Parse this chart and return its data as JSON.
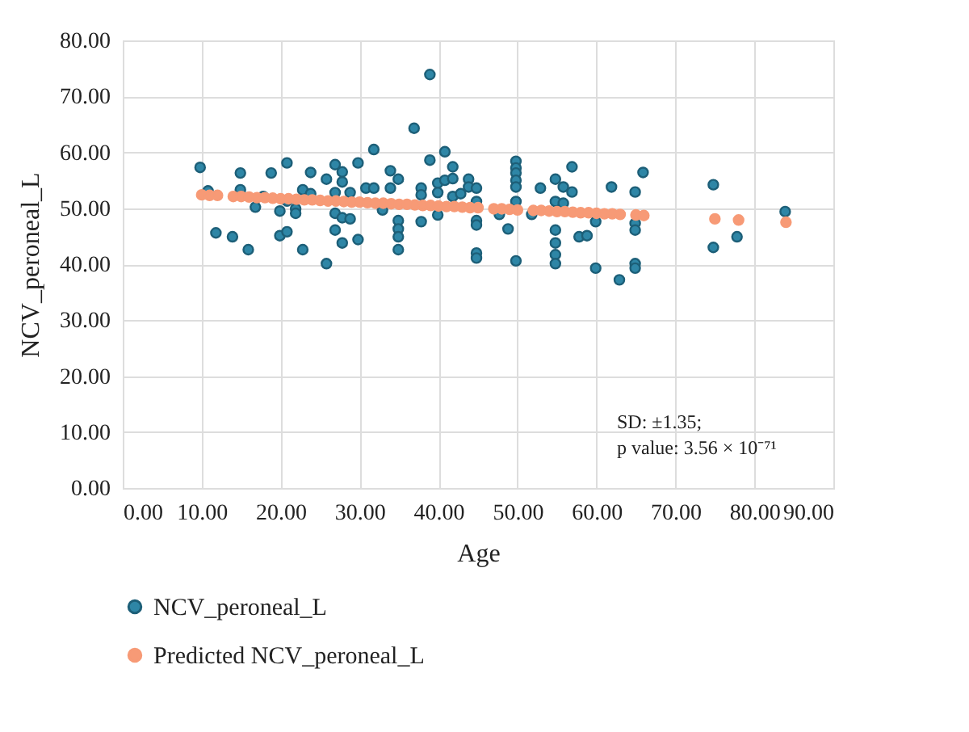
{
  "chart_data": {
    "type": "scatter",
    "xlabel": "Age",
    "ylabel": "NCV_peroneal_L",
    "xlim": [
      0,
      90
    ],
    "ylim": [
      0,
      80
    ],
    "xticks": [
      {
        "value": 0,
        "label": "0.00"
      },
      {
        "value": 10,
        "label": "10.00"
      },
      {
        "value": 20,
        "label": "20.00"
      },
      {
        "value": 30,
        "label": "30.00"
      },
      {
        "value": 40,
        "label": "40.00"
      },
      {
        "value": 50,
        "label": "50.00"
      },
      {
        "value": 60,
        "label": "60.00"
      },
      {
        "value": 70,
        "label": "70.00"
      },
      {
        "value": 80,
        "label": "80.00"
      },
      {
        "value": 90,
        "label": "90.00"
      }
    ],
    "yticks": [
      {
        "value": 0,
        "label": "0.00"
      },
      {
        "value": 10,
        "label": "10.00"
      },
      {
        "value": 20,
        "label": "20.00"
      },
      {
        "value": 30,
        "label": "30.00"
      },
      {
        "value": 40,
        "label": "40.00"
      },
      {
        "value": 50,
        "label": "50.00"
      },
      {
        "value": 60,
        "label": "60.00"
      },
      {
        "value": 70,
        "label": "70.00"
      },
      {
        "value": 80,
        "label": "80.00"
      }
    ],
    "grid": true,
    "legend": "bottom",
    "marker": "circle",
    "annotations": [
      "SD: ±1.35;",
      "p value: 3.56 × 10⁻⁷¹"
    ],
    "series": [
      {
        "name": "NCV_peroneal_L",
        "color": "#2e86a6",
        "x": [
          9.8,
          10.8,
          11.8,
          13.9,
          14.9,
          14.9,
          15.9,
          16.8,
          17.8,
          18.8,
          19.9,
          19.9,
          20.8,
          20.8,
          20.8,
          21.9,
          21.9,
          22.8,
          22.8,
          23.8,
          23.8,
          25.8,
          25.8,
          26.9,
          26.9,
          26.9,
          26.9,
          27.8,
          27.8,
          27.8,
          28.8,
          28.8,
          27.8,
          29.8,
          29.8,
          30.8,
          31.8,
          31.8,
          32.9,
          33.9,
          33.9,
          34.9,
          34.9,
          34.9,
          34.9,
          34.9,
          36.9,
          37.8,
          37.8,
          37.8,
          38.9,
          38.9,
          39.9,
          39.9,
          39.9,
          40.8,
          40.8,
          41.8,
          41.8,
          41.8,
          42.8,
          43.8,
          43.8,
          44.8,
          44.8,
          44.8,
          44.8,
          44.8,
          44.8,
          47.7,
          48.8,
          49.8,
          49.8,
          49.8,
          49.8,
          49.8,
          49.8,
          49.8,
          51.8,
          52.9,
          54.8,
          54.8,
          54.8,
          54.8,
          54.8,
          54.8,
          55.8,
          55.8,
          56.9,
          56.9,
          57.8,
          58.8,
          59.9,
          59.9,
          61.9,
          62.9,
          64.9,
          64.9,
          64.9,
          64.9,
          64.9,
          65.9,
          74.8,
          74.8,
          77.8,
          83.9
        ],
        "values": [
          57.3,
          53.1,
          45.6,
          44.9,
          56.3,
          53.3,
          42.6,
          50.2,
          52.1,
          56.3,
          49.5,
          45.1,
          58.1,
          45.8,
          51.3,
          49.9,
          49.1,
          42.6,
          53.3,
          56.4,
          52.6,
          55.2,
          40.1,
          57.8,
          52.8,
          49.1,
          46.1,
          56.5,
          54.7,
          48.3,
          48.1,
          52.8,
          43.8,
          58.1,
          44.4,
          53.6,
          53.6,
          60.5,
          49.7,
          56.7,
          53.6,
          55.2,
          47.8,
          46.3,
          44.9,
          42.6,
          64.3,
          53.6,
          52.4,
          47.6,
          73.9,
          58.6,
          54.5,
          52.8,
          48.8,
          60.1,
          55.0,
          57.4,
          55.3,
          52.1,
          52.6,
          55.2,
          53.8,
          53.6,
          51.2,
          47.8,
          47.0,
          42.0,
          41.1,
          48.9,
          46.3,
          58.4,
          57.2,
          56.3,
          55.0,
          53.8,
          51.2,
          40.6,
          48.9,
          53.6,
          55.2,
          51.2,
          46.1,
          43.8,
          41.7,
          40.1,
          53.8,
          50.9,
          57.4,
          52.9,
          44.9,
          45.1,
          47.6,
          39.3,
          53.8,
          37.2,
          52.9,
          47.3,
          46.1,
          40.1,
          39.3,
          56.4,
          54.2,
          43.0,
          44.9,
          49.4
        ]
      },
      {
        "name": "Predicted NCV_peroneal_L",
        "color": "#f79a76",
        "x": [
          10,
          11,
          12,
          14,
          15,
          16,
          17,
          18,
          19,
          20,
          21,
          22,
          23,
          24,
          25,
          26,
          27,
          28,
          29,
          30,
          31,
          32,
          33,
          34,
          35,
          36,
          37,
          38,
          39,
          40,
          41,
          42,
          43,
          44,
          45,
          47,
          48,
          49,
          50,
          52,
          53,
          54,
          55,
          56,
          57,
          58,
          59,
          60,
          61,
          62,
          63,
          65,
          66,
          75,
          78,
          84
        ],
        "values": [
          52.4,
          52.3,
          52.3,
          52.1,
          52.1,
          52.0,
          51.9,
          51.9,
          51.8,
          51.7,
          51.7,
          51.6,
          51.5,
          51.5,
          51.4,
          51.3,
          51.3,
          51.2,
          51.1,
          51.1,
          51.0,
          50.9,
          50.9,
          50.8,
          50.7,
          50.7,
          50.6,
          50.5,
          50.5,
          50.4,
          50.3,
          50.3,
          50.2,
          50.1,
          50.1,
          49.9,
          49.9,
          49.8,
          49.7,
          49.6,
          49.6,
          49.5,
          49.4,
          49.4,
          49.3,
          49.2,
          49.2,
          49.1,
          49.0,
          49.0,
          48.9,
          48.8,
          48.7,
          48.1,
          47.9,
          47.5
        ]
      }
    ]
  }
}
